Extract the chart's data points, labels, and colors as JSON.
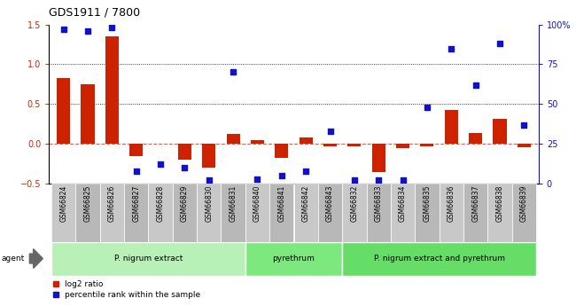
{
  "title": "GDS1911 / 7800",
  "categories": [
    "GSM66824",
    "GSM66825",
    "GSM66826",
    "GSM66827",
    "GSM66828",
    "GSM66829",
    "GSM66830",
    "GSM66831",
    "GSM66840",
    "GSM66841",
    "GSM66842",
    "GSM66843",
    "GSM66832",
    "GSM66833",
    "GSM66834",
    "GSM66835",
    "GSM66836",
    "GSM66837",
    "GSM66838",
    "GSM66839"
  ],
  "log2_ratio": [
    0.83,
    0.75,
    1.35,
    -0.15,
    0.0,
    -0.2,
    -0.3,
    0.12,
    0.05,
    -0.18,
    0.08,
    -0.03,
    -0.03,
    -0.35,
    -0.05,
    -0.03,
    0.42,
    0.13,
    0.31,
    -0.04
  ],
  "percentile": [
    97,
    96,
    98,
    8,
    12,
    10,
    2,
    70,
    3,
    5,
    8,
    33,
    2,
    2,
    2,
    48,
    85,
    62,
    88,
    37
  ],
  "groups": [
    {
      "label": "P. nigrum extract",
      "start": 0,
      "end": 7
    },
    {
      "label": "pyrethrum",
      "start": 8,
      "end": 11
    },
    {
      "label": "P. nigrum extract and pyrethrum",
      "start": 12,
      "end": 19
    }
  ],
  "group_colors": [
    "#b8f0b8",
    "#7de87d",
    "#66dd66"
  ],
  "bar_color": "#cc2200",
  "dot_color": "#1111cc",
  "ylim_left": [
    -0.5,
    1.5
  ],
  "ylim_right": [
    0,
    100
  ],
  "yticks_left": [
    -0.5,
    0.0,
    0.5,
    1.0,
    1.5
  ],
  "yticks_right": [
    0,
    25,
    50,
    75,
    100
  ],
  "hlines": [
    0.5,
    1.0
  ],
  "bar_width": 0.55,
  "background": "#ffffff"
}
